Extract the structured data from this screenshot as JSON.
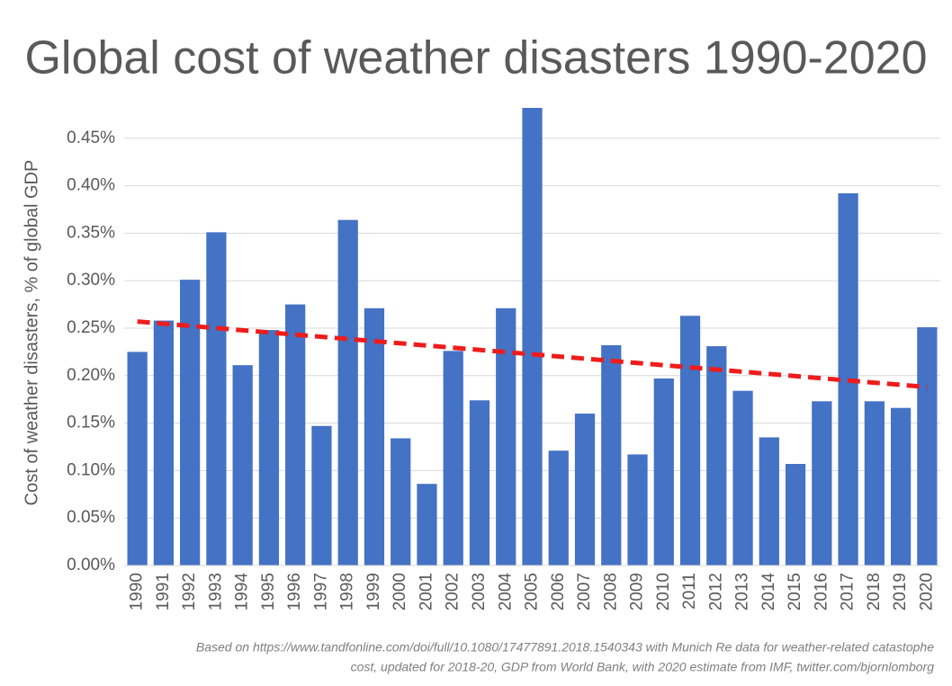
{
  "chart_data": {
    "type": "bar",
    "title": "Global cost of weather disasters 1990-2020",
    "y_label": "Cost of weather disasters, % of global GDP",
    "footnote": [
      "Based on https://www.tandfonline.com/doi/full/10.1080/17477891.2018.1540343 with Munich Re data for weather-related catastophe",
      "cost, updated for 2018-20, GDP from World Bank, with 2020 estimate from IMF, twitter.com/bjornlomborg"
    ],
    "categories": [
      "1990",
      "1991",
      "1992",
      "1993",
      "1994",
      "1995",
      "1996",
      "1997",
      "1998",
      "1999",
      "2000",
      "2001",
      "2002",
      "2003",
      "2004",
      "2005",
      "2006",
      "2007",
      "2008",
      "2009",
      "2010",
      "2011",
      "2012",
      "2013",
      "2014",
      "2015",
      "2016",
      "2017",
      "2018",
      "2019",
      "2020"
    ],
    "values": [
      0.225,
      0.258,
      0.301,
      0.351,
      0.211,
      0.248,
      0.275,
      0.147,
      0.364,
      0.271,
      0.134,
      0.086,
      0.226,
      0.174,
      0.271,
      0.482,
      0.121,
      0.16,
      0.232,
      0.117,
      0.197,
      0.263,
      0.231,
      0.184,
      0.135,
      0.107,
      0.173,
      0.392,
      0.173,
      0.166,
      0.251
    ],
    "color": "#4472c4",
    "trend": {
      "start": 0.257,
      "end": 0.188,
      "color": "#ee1c1c"
    },
    "ylim": [
      0,
      0.5
    ],
    "yticks": [
      {
        "value": 0,
        "label": "0.00%"
      },
      {
        "value": 0.05,
        "label": "0.05%"
      },
      {
        "value": 0.1,
        "label": "0.10%"
      },
      {
        "value": 0.15,
        "label": "0.15%"
      },
      {
        "value": 0.2,
        "label": "0.20%"
      },
      {
        "value": 0.25,
        "label": "0.25%"
      },
      {
        "value": 0.3,
        "label": "0.30%"
      },
      {
        "value": 0.35,
        "label": "0.35%"
      },
      {
        "value": 0.4,
        "label": "0.40%"
      },
      {
        "value": 0.45,
        "label": "0.45%"
      }
    ],
    "grid": true
  }
}
